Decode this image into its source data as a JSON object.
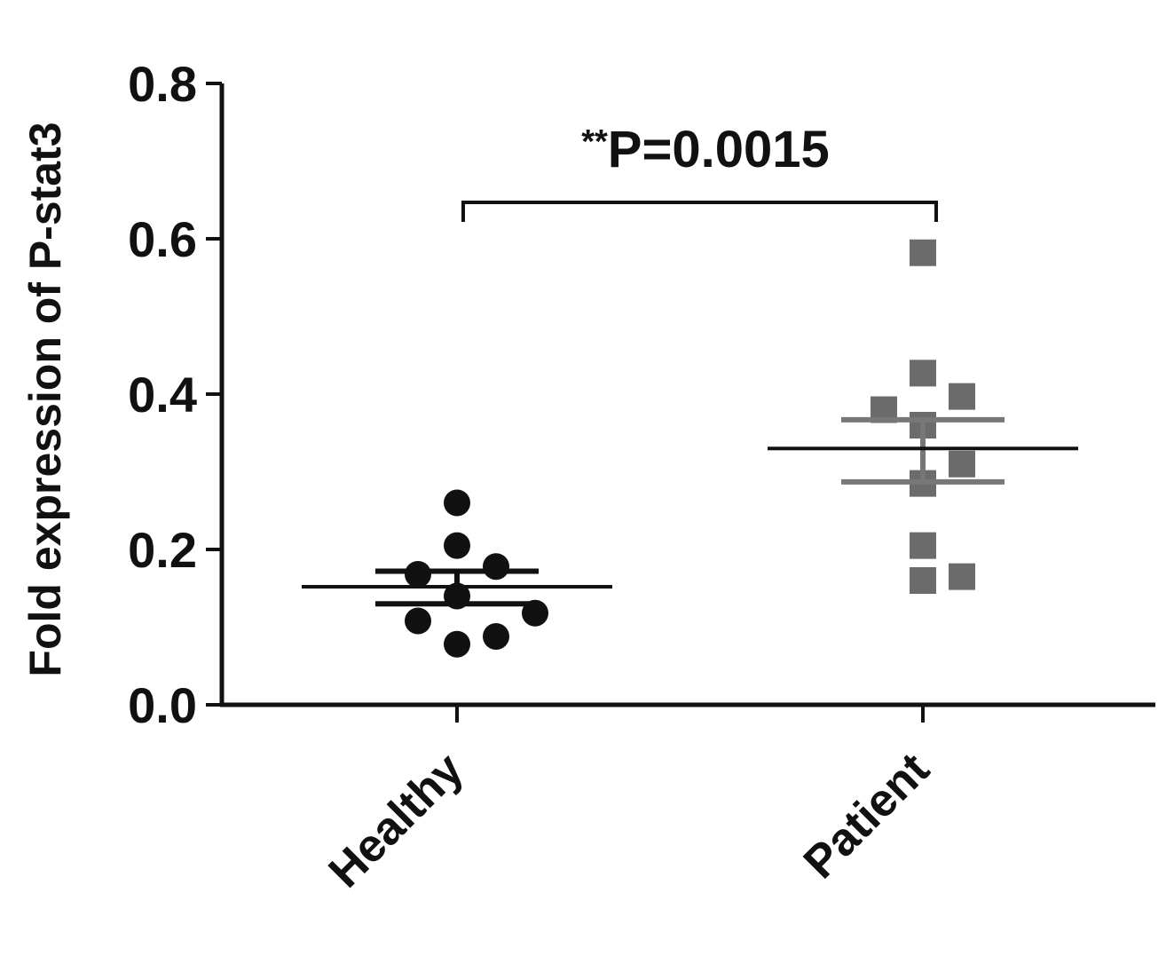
{
  "chart_data": {
    "type": "scatter",
    "title": "",
    "ylabel": "Fold expression of P-stat3",
    "xlabel": "",
    "ylim": [
      0,
      0.8
    ],
    "yticks": [
      {
        "value": 0.0,
        "label": "0.0"
      },
      {
        "value": 0.2,
        "label": "0.2"
      },
      {
        "value": 0.4,
        "label": "0.4"
      },
      {
        "value": 0.6,
        "label": "0.6"
      },
      {
        "value": 0.8,
        "label": "0.8"
      }
    ],
    "categories": [
      "Healthy",
      "Patient"
    ],
    "series": [
      {
        "category": "Healthy",
        "marker": "circle",
        "color": "#111111",
        "error_color": "#111111",
        "mean": 0.152,
        "sem": [
          0.13,
          0.172
        ],
        "points": [
          {
            "jitter": 0,
            "y": 0.26
          },
          {
            "jitter": 0,
            "y": 0.205
          },
          {
            "jitter": -1,
            "y": 0.168
          },
          {
            "jitter": 1,
            "y": 0.178
          },
          {
            "jitter": 0,
            "y": 0.14
          },
          {
            "jitter": -1,
            "y": 0.108
          },
          {
            "jitter": 1,
            "y": 0.088
          },
          {
            "jitter": 2,
            "y": 0.118
          },
          {
            "jitter": 0,
            "y": 0.078
          }
        ]
      },
      {
        "category": "Patient",
        "marker": "square",
        "color": "#6b6b6b",
        "error_color": "#777777",
        "mean": 0.33,
        "sem": [
          0.287,
          0.367
        ],
        "points": [
          {
            "jitter": 0,
            "y": 0.582
          },
          {
            "jitter": 0,
            "y": 0.427
          },
          {
            "jitter": 1,
            "y": 0.397
          },
          {
            "jitter": -1,
            "y": 0.38
          },
          {
            "jitter": 0,
            "y": 0.36
          },
          {
            "jitter": 1,
            "y": 0.31
          },
          {
            "jitter": 0,
            "y": 0.285
          },
          {
            "jitter": 0,
            "y": 0.205
          },
          {
            "jitter": 0,
            "y": 0.16
          },
          {
            "jitter": 1,
            "y": 0.165
          }
        ]
      }
    ],
    "annotation": {
      "stars": "**",
      "text": "P=0.0015"
    }
  }
}
